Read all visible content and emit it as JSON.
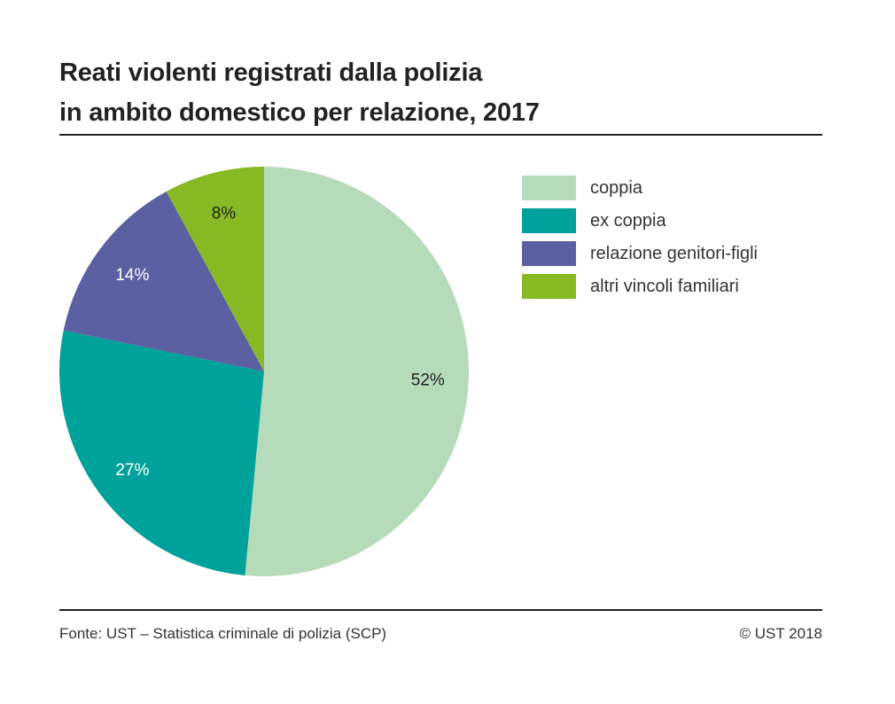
{
  "chart_data": {
    "type": "pie",
    "title": "Reati violenti registrati dalla polizia in ambito domestico per relazione, 2017",
    "title_lines": [
      "Reati violenti registrati dalla polizia",
      "in ambito domestico per relazione, 2017"
    ],
    "categories": [
      "coppia",
      "ex coppia",
      "relazione genitori-figli",
      "altri vincoli familiari"
    ],
    "values": [
      52,
      27,
      14,
      8
    ],
    "data_labels": [
      "52%",
      "27%",
      "14%",
      "8%"
    ],
    "colors": [
      "#b5dbbb",
      "#00a19a",
      "#5b60a2",
      "#86b924"
    ],
    "label_colors": [
      "#222222",
      "#ffffff",
      "#ffffff",
      "#222222"
    ],
    "legend_position": "top-right"
  },
  "footer": {
    "source": "Fonte: UST – Statistica criminale di polizia (SCP)",
    "copyright": "© UST 2018"
  }
}
